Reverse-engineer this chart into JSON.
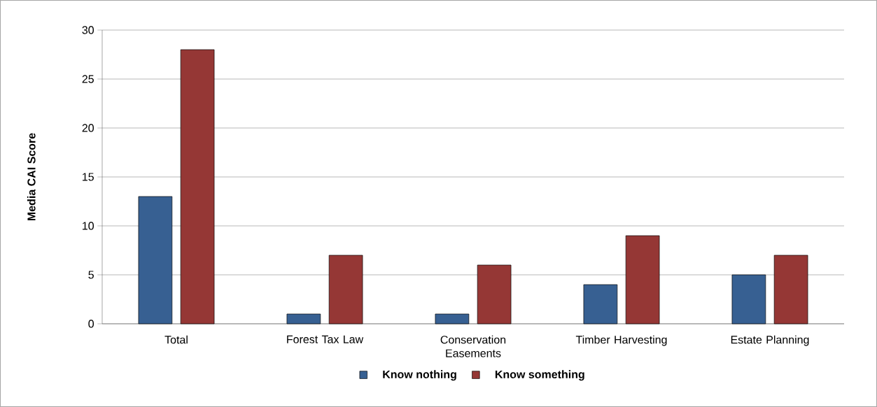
{
  "chart_data": {
    "type": "bar",
    "ylabel": "Media CAI Score",
    "categories": [
      "Total",
      "Forest Tax Law",
      "Conservation Easements",
      "Timber Harvesting",
      "Estate Planning"
    ],
    "series": [
      {
        "name": "Know nothing",
        "color": "#376092",
        "values": [
          13,
          1,
          1,
          4,
          5
        ]
      },
      {
        "name": "Know something",
        "color": "#953735",
        "values": [
          28,
          7,
          6,
          9,
          7
        ]
      }
    ],
    "ylim": [
      0,
      30
    ],
    "yticks": [
      0,
      5,
      10,
      15,
      20,
      25,
      30
    ],
    "grid": "y",
    "legend": "bottom"
  }
}
